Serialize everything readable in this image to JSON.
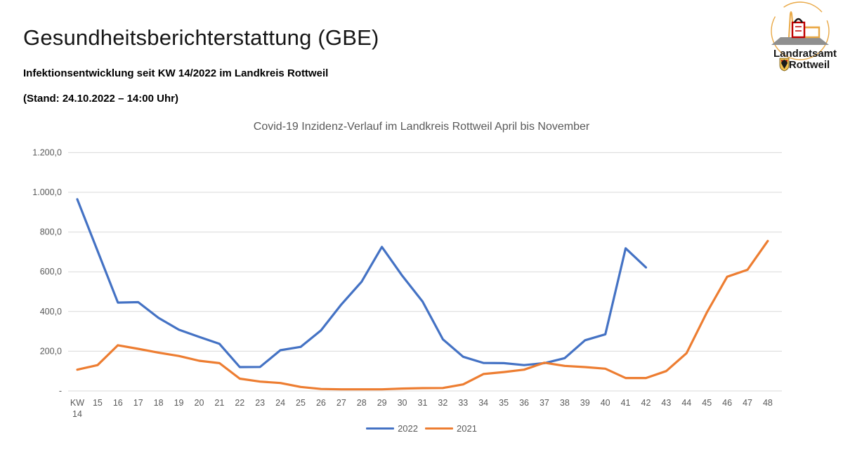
{
  "header": {
    "title": "Gesundheitsberichterstattung (GBE)",
    "subtitle": "Infektionsentwicklung seit KW 14/2022 im Landkreis Rottweil",
    "stand_line": "(Stand: 24.10.2022 – 14:00 Uhr)"
  },
  "logo": {
    "line1": "Landratsamt",
    "line2": "Rottweil"
  },
  "chart_data": {
    "type": "line",
    "title": "Covid-19 Inzidenz-Verlauf im Landkreis Rottweil April bis November",
    "categories": [
      "KW\n14",
      "15",
      "16",
      "17",
      "18",
      "19",
      "20",
      "21",
      "22",
      "23",
      "24",
      "25",
      "26",
      "27",
      "28",
      "29",
      "30",
      "31",
      "32",
      "33",
      "34",
      "35",
      "36",
      "37",
      "38",
      "39",
      "40",
      "41",
      "42",
      "43",
      "44",
      "45",
      "46",
      "47",
      "48"
    ],
    "series": [
      {
        "name": "2022",
        "color": "#4472C4",
        "values": [
          965,
          705,
          445,
          447,
          368,
          308,
          272,
          237,
          120,
          121,
          205,
          222,
          305,
          435,
          550,
          725,
          580,
          450,
          260,
          172,
          141,
          140,
          130,
          140,
          165,
          255,
          285,
          718,
          622,
          null,
          null,
          null,
          null,
          null,
          null
        ]
      },
      {
        "name": "2021",
        "color": "#ED7D31",
        "values": [
          107,
          130,
          230,
          212,
          193,
          176,
          152,
          140,
          62,
          47,
          40,
          20,
          10,
          8,
          8,
          8,
          12,
          14,
          15,
          33,
          85,
          95,
          107,
          142,
          126,
          120,
          112,
          65,
          65,
          100,
          190,
          395,
          575,
          610,
          755
        ]
      }
    ],
    "ylim": [
      0,
      1200
    ],
    "ytick_step": 200,
    "ytick_labels": [
      "-",
      "200,0",
      "400,0",
      "600,0",
      "800,0",
      "1.000,0",
      "1.200,0"
    ],
    "grid": true,
    "legend_position": "bottom",
    "grid_color": "#D9D9D9",
    "axis_text_color": "#595959"
  }
}
